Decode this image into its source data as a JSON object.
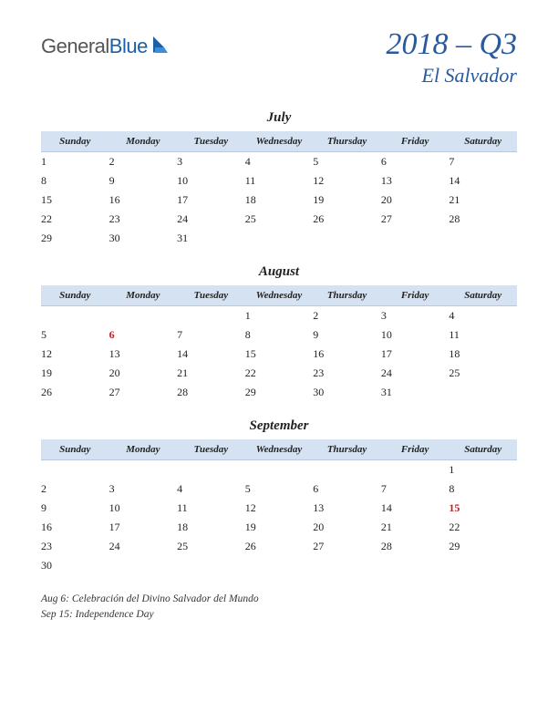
{
  "logo": {
    "text_general": "General",
    "text_blue": "Blue",
    "icon_color_1": "#1a5fa8",
    "icon_color_2": "#3a8fd8"
  },
  "header": {
    "quarter": "2018 – Q3",
    "country": "El Salvador"
  },
  "colors": {
    "header_bg": "#d5e2f2",
    "header_border": "#b8c8de",
    "title_color": "#2a5a9a",
    "holiday_color": "#c41e1e",
    "text_color": "#222222",
    "background": "#ffffff"
  },
  "typography": {
    "quarter_fontsize": 34,
    "country_fontsize": 22,
    "month_fontsize": 15,
    "dayheader_fontsize": 11,
    "cell_fontsize": 12,
    "holiday_list_fontsize": 11.5
  },
  "day_headers": [
    "Sunday",
    "Monday",
    "Tuesday",
    "Wednesday",
    "Thursday",
    "Friday",
    "Saturday"
  ],
  "months": [
    {
      "name": "July",
      "weeks": [
        [
          {
            "d": "1"
          },
          {
            "d": "2"
          },
          {
            "d": "3"
          },
          {
            "d": "4"
          },
          {
            "d": "5"
          },
          {
            "d": "6"
          },
          {
            "d": "7"
          }
        ],
        [
          {
            "d": "8"
          },
          {
            "d": "9"
          },
          {
            "d": "10"
          },
          {
            "d": "11"
          },
          {
            "d": "12"
          },
          {
            "d": "13"
          },
          {
            "d": "14"
          }
        ],
        [
          {
            "d": "15"
          },
          {
            "d": "16"
          },
          {
            "d": "17"
          },
          {
            "d": "18"
          },
          {
            "d": "19"
          },
          {
            "d": "20"
          },
          {
            "d": "21"
          }
        ],
        [
          {
            "d": "22"
          },
          {
            "d": "23"
          },
          {
            "d": "24"
          },
          {
            "d": "25"
          },
          {
            "d": "26"
          },
          {
            "d": "27"
          },
          {
            "d": "28"
          }
        ],
        [
          {
            "d": "29"
          },
          {
            "d": "30"
          },
          {
            "d": "31"
          },
          {
            "d": ""
          },
          {
            "d": ""
          },
          {
            "d": ""
          },
          {
            "d": ""
          }
        ]
      ]
    },
    {
      "name": "August",
      "weeks": [
        [
          {
            "d": ""
          },
          {
            "d": ""
          },
          {
            "d": ""
          },
          {
            "d": "1"
          },
          {
            "d": "2"
          },
          {
            "d": "3"
          },
          {
            "d": "4"
          }
        ],
        [
          {
            "d": "5"
          },
          {
            "d": "6",
            "holiday": true
          },
          {
            "d": "7"
          },
          {
            "d": "8"
          },
          {
            "d": "9"
          },
          {
            "d": "10"
          },
          {
            "d": "11"
          }
        ],
        [
          {
            "d": "12"
          },
          {
            "d": "13"
          },
          {
            "d": "14"
          },
          {
            "d": "15"
          },
          {
            "d": "16"
          },
          {
            "d": "17"
          },
          {
            "d": "18"
          }
        ],
        [
          {
            "d": "19"
          },
          {
            "d": "20"
          },
          {
            "d": "21"
          },
          {
            "d": "22"
          },
          {
            "d": "23"
          },
          {
            "d": "24"
          },
          {
            "d": "25"
          }
        ],
        [
          {
            "d": "26"
          },
          {
            "d": "27"
          },
          {
            "d": "28"
          },
          {
            "d": "29"
          },
          {
            "d": "30"
          },
          {
            "d": "31"
          },
          {
            "d": ""
          }
        ]
      ]
    },
    {
      "name": "September",
      "weeks": [
        [
          {
            "d": ""
          },
          {
            "d": ""
          },
          {
            "d": ""
          },
          {
            "d": ""
          },
          {
            "d": ""
          },
          {
            "d": ""
          },
          {
            "d": "1"
          }
        ],
        [
          {
            "d": "2"
          },
          {
            "d": "3"
          },
          {
            "d": "4"
          },
          {
            "d": "5"
          },
          {
            "d": "6"
          },
          {
            "d": "7"
          },
          {
            "d": "8"
          }
        ],
        [
          {
            "d": "9"
          },
          {
            "d": "10"
          },
          {
            "d": "11"
          },
          {
            "d": "12"
          },
          {
            "d": "13"
          },
          {
            "d": "14"
          },
          {
            "d": "15",
            "holiday": true
          }
        ],
        [
          {
            "d": "16"
          },
          {
            "d": "17"
          },
          {
            "d": "18"
          },
          {
            "d": "19"
          },
          {
            "d": "20"
          },
          {
            "d": "21"
          },
          {
            "d": "22"
          }
        ],
        [
          {
            "d": "23"
          },
          {
            "d": "24"
          },
          {
            "d": "25"
          },
          {
            "d": "26"
          },
          {
            "d": "27"
          },
          {
            "d": "28"
          },
          {
            "d": "29"
          }
        ],
        [
          {
            "d": "30"
          },
          {
            "d": ""
          },
          {
            "d": ""
          },
          {
            "d": ""
          },
          {
            "d": ""
          },
          {
            "d": ""
          },
          {
            "d": ""
          }
        ]
      ]
    }
  ],
  "holiday_list": [
    "Aug 6: Celebración del Divino Salvador del Mundo",
    "Sep 15: Independence Day"
  ]
}
